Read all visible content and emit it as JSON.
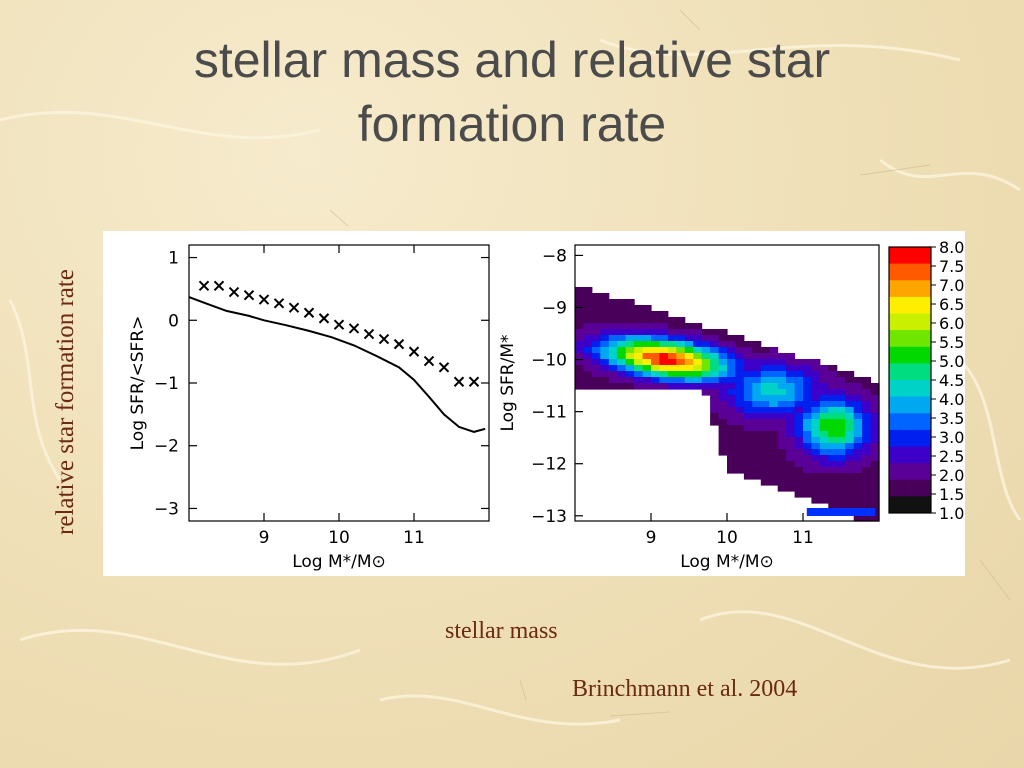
{
  "slide": {
    "title_line1": "stellar mass and relative star",
    "title_line2": "formation rate",
    "y_caption": "relative star formation rate",
    "x_caption": "stellar mass",
    "credit": "Brinchmann et al. 2004"
  },
  "colors": {
    "caption": "#6b2a12",
    "title": "#4b4b4b"
  },
  "chart_data": [
    {
      "type": "line",
      "xlabel": "Log M*/M⊙",
      "ylabel": "Log SFR/<SFR>",
      "xlim": [
        8.0,
        12.0
      ],
      "ylim": [
        -3.2,
        1.2
      ],
      "xticks": [
        9,
        10,
        11
      ],
      "yticks": [
        1,
        0,
        -1,
        -2,
        -3
      ],
      "series": [
        {
          "marker": "x",
          "x": [
            8.2,
            8.4,
            8.6,
            8.8,
            9.0,
            9.2,
            9.4,
            9.6,
            9.8,
            10.0,
            10.2,
            10.4,
            10.6,
            10.8,
            11.0,
            11.2,
            11.4,
            11.6,
            11.8
          ],
          "y": [
            0.55,
            0.55,
            0.45,
            0.4,
            0.33,
            0.27,
            0.2,
            0.12,
            0.03,
            -0.07,
            -0.13,
            -0.22,
            -0.3,
            -0.38,
            -0.5,
            -0.65,
            -0.75,
            -0.98,
            -0.98
          ]
        },
        {
          "marker": "line",
          "x": [
            8.0,
            8.2,
            8.5,
            8.8,
            9.0,
            9.3,
            9.6,
            9.9,
            10.2,
            10.5,
            10.8,
            11.0,
            11.2,
            11.4,
            11.6,
            11.8,
            11.95
          ],
          "y": [
            0.37,
            0.28,
            0.15,
            0.07,
            0.0,
            -0.08,
            -0.17,
            -0.27,
            -0.4,
            -0.57,
            -0.75,
            -0.95,
            -1.22,
            -1.5,
            -1.7,
            -1.78,
            -1.73
          ]
        }
      ]
    },
    {
      "type": "heatmap",
      "xlabel": "Log M*/M⊙",
      "ylabel": "Log SFR/M*",
      "xlim": [
        8.0,
        12.0
      ],
      "ylim": [
        -13.1,
        -7.8
      ],
      "xticks": [
        9,
        10,
        11
      ],
      "yticks": [
        -8,
        -9,
        -10,
        -11,
        -12,
        -13
      ],
      "colorbar": {
        "labels": [
          "8.0",
          "7.5",
          "7.0",
          "6.5",
          "6.0",
          "5.5",
          "5.0",
          "4.5",
          "4.0",
          "3.5",
          "3.0",
          "2.5",
          "2.0",
          "1.5",
          "1.0"
        ],
        "colors": [
          "#ff0000",
          "#ff5a00",
          "#ffa500",
          "#ffee00",
          "#c8f000",
          "#6ee600",
          "#00d800",
          "#00dc80",
          "#00d2c8",
          "#00a8f0",
          "#0064ff",
          "#0020f0",
          "#3c00c8",
          "#5a0096",
          "#48005a",
          "#111111"
        ]
      }
    }
  ]
}
